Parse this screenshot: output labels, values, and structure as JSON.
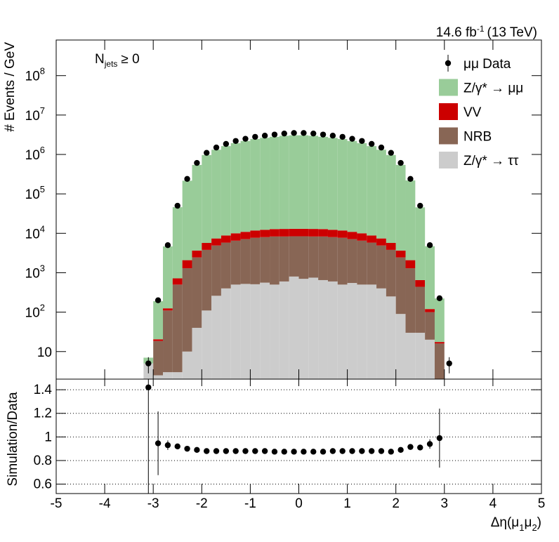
{
  "chart_data": [
    {
      "type": "histogram",
      "lumi": {
        "text": "14.6 fb",
        "sup": "-1",
        "rest": "(13 TeV)"
      },
      "annotation": {
        "text": "N",
        "sub": "jets",
        "rest": "≥ 0"
      },
      "ylabel": "# Events / GeV",
      "yscale": "log",
      "ylim": [
        2,
        800000000
      ],
      "yticks": [
        10,
        {
          "value": 100,
          "label": "10",
          "sup": "2"
        },
        {
          "value": 1000,
          "label": "10",
          "sup": "3"
        },
        {
          "value": 10000,
          "label": "10",
          "sup": "4"
        },
        {
          "value": 100000,
          "label": "10",
          "sup": "5"
        },
        {
          "value": 1000000,
          "label": "10",
          "sup": "6"
        },
        {
          "value": 10000000,
          "label": "10",
          "sup": "7"
        },
        {
          "value": 100000000,
          "label": "10",
          "sup": "8"
        }
      ],
      "xlim": [
        -5,
        5
      ],
      "xticks": [
        -5,
        -4,
        -3,
        -2,
        -1,
        0,
        1,
        2,
        3,
        4,
        5
      ],
      "legend": "top-right",
      "bins": [
        -3.2,
        -3,
        -2.8,
        -2.6,
        -2.4,
        -2.2,
        -2,
        -1.8,
        -1.6,
        -1.4,
        -1.2,
        -1,
        -0.8,
        -0.6,
        -0.4,
        -0.2,
        0,
        0.2,
        0.4,
        0.6,
        0.8,
        1,
        1.2,
        1.4,
        1.6,
        1.8,
        2,
        2.2,
        2.4,
        2.6,
        2.8,
        3,
        3.2
      ],
      "data": {
        "name": "μμ Data",
        "color": "#000000",
        "values": [
          5,
          200,
          5000,
          50000,
          240000,
          610000,
          1100000,
          1500000,
          1850000,
          2200000,
          2500000,
          2800000,
          3000000,
          3200000,
          3400000,
          3500000,
          3500000,
          3400000,
          3200000,
          3000000,
          2800000,
          2500000,
          2200000,
          1850000,
          1500000,
          1100000,
          610000,
          240000,
          50000,
          5000,
          225,
          5
        ],
        "errors": [
          2.2,
          14,
          71,
          224,
          490,
          781,
          1049,
          1225,
          1360,
          1483,
          1581,
          1673,
          1732,
          1789,
          1844,
          1871,
          1871,
          1844,
          1789,
          1732,
          1673,
          1581,
          1483,
          1360,
          1225,
          1049,
          781,
          490,
          224,
          71,
          15,
          2.2
        ]
      },
      "series": [
        {
          "name": "Z/γ* → μμ",
          "color": "#99cc99",
          "values": [
            2,
            169,
            4525,
            45300,
            214000,
            539000,
            962000,
            1312000,
            1619000,
            1926000,
            2189000,
            2452000,
            2628000,
            2787000,
            2962000,
            3050000,
            3050000,
            2962000,
            2787000,
            2628000,
            2452000,
            2189000,
            1926000,
            1619000,
            1312000,
            962000,
            539000,
            217500,
            44850,
            4580,
            205,
            0
          ]
        },
        {
          "name": "VV",
          "color": "#cc0000",
          "values": [
            0,
            2,
            15,
            220,
            780,
            1200,
            1900,
            2500,
            3000,
            3500,
            3800,
            4100,
            4300,
            4500,
            4600,
            4600,
            4600,
            4600,
            4500,
            4300,
            4100,
            3800,
            3500,
            3000,
            2500,
            1900,
            1200,
            780,
            210,
            20,
            1.5,
            0
          ]
        },
        {
          "name": "NRB",
          "color": "#886655",
          "values": [
            0,
            16,
            107,
            497,
            1290,
            2410,
            3690,
            4640,
            5400,
            6000,
            6580,
            7190,
            7440,
            7800,
            7700,
            7600,
            7700,
            7550,
            7650,
            7400,
            7200,
            6550,
            6000,
            5300,
            4500,
            3550,
            2360,
            1270,
            410,
            80,
            16,
            0
          ]
        },
        {
          "name": "Z/γ* → ττ",
          "color": "#cccccc",
          "values": [
            5,
            2.5,
            3,
            3,
            10,
            40,
            110,
            260,
            400,
            500,
            520,
            510,
            560,
            500,
            600,
            800,
            700,
            750,
            650,
            600,
            500,
            550,
            500,
            500,
            400,
            250,
            90,
            30,
            30,
            20,
            0,
            0
          ]
        }
      ]
    },
    {
      "type": "scatter",
      "ylabel": "Simulation/Data",
      "xlabel": [
        "Δη(μ",
        "1",
        "μ",
        "2",
        ")"
      ],
      "xlim": [
        -5,
        5
      ],
      "xticks": [
        -5,
        -4,
        -3,
        -2,
        -1,
        0,
        1,
        2,
        3,
        4,
        5
      ],
      "ylim": [
        0.52,
        1.49
      ],
      "yticks": [
        0.6,
        0.8,
        1,
        1.2,
        1.4
      ],
      "grid": true,
      "color": "#000000",
      "values": [
        1.42,
        0.946,
        0.93,
        0.92,
        0.9,
        0.89,
        0.88,
        0.88,
        0.88,
        0.88,
        0.88,
        0.88,
        0.88,
        0.875,
        0.875,
        0.875,
        0.875,
        0.875,
        0.875,
        0.88,
        0.88,
        0.88,
        0.88,
        0.88,
        0.88,
        0.875,
        0.89,
        0.915,
        0.91,
        0.94,
        0.99,
        null
      ],
      "errors": [
        0.95,
        0.27,
        0.04,
        0.015,
        0.008,
        0.006,
        0.005,
        0.005,
        0.005,
        0.005,
        0.005,
        0.005,
        0.005,
        0.005,
        0.005,
        0.005,
        0.005,
        0.005,
        0.005,
        0.005,
        0.005,
        0.005,
        0.005,
        0.005,
        0.005,
        0.005,
        0.006,
        0.008,
        0.015,
        0.04,
        0.25,
        null
      ]
    }
  ]
}
